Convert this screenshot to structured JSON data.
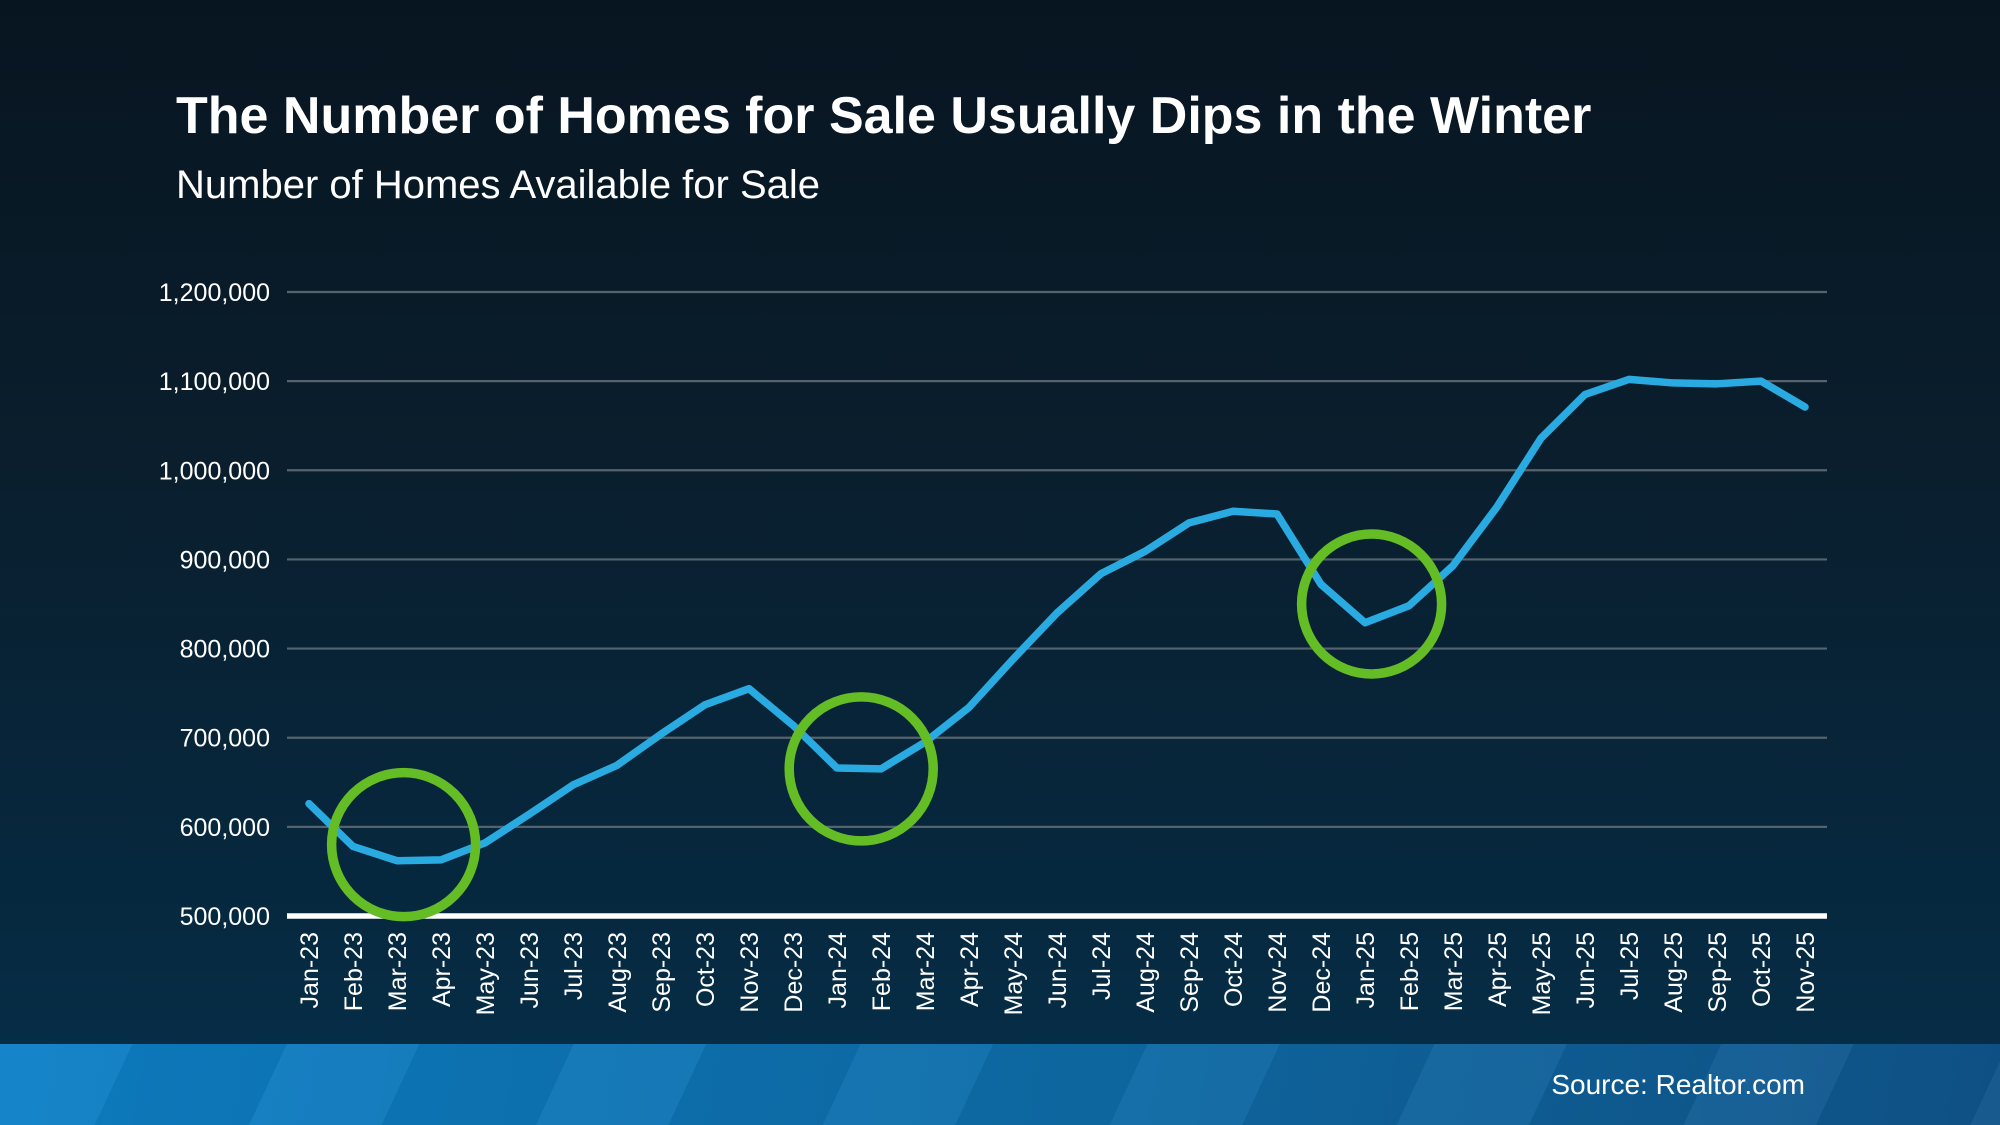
{
  "slide": {
    "title": "The Number of Homes for Sale Usually Dips in the Winter",
    "subtitle": "Number of Homes Available for Sale",
    "source": "Source: Realtor.com"
  },
  "colors": {
    "line": "#29abe2",
    "annotation_circle": "#65bd25",
    "gridline": "#55636d",
    "axis_line": "#ffffff",
    "text": "#ffffff",
    "footer_left": "#0d80c7",
    "footer_right": "#10548a"
  },
  "chart_data": {
    "type": "line",
    "title": "Number of Homes Available for Sale",
    "xlabel": "",
    "ylabel": "",
    "grid": "horizontal",
    "legend": "none",
    "ylim": [
      500000,
      1200000
    ],
    "ytick_interval": 100000,
    "ytick_labels": [
      "500,000",
      "600,000",
      "700,000",
      "800,000",
      "900,000",
      "1,000,000",
      "1,100,000",
      "1,200,000"
    ],
    "categories": [
      "Jan-23",
      "Feb-23",
      "Mar-23",
      "Apr-23",
      "May-23",
      "Jun-23",
      "Jul-23",
      "Aug-23",
      "Sep-23",
      "Oct-23",
      "Nov-23",
      "Dec-23",
      "Jan-24",
      "Feb-24",
      "Mar-24",
      "Apr-24",
      "May-24",
      "Jun-24",
      "Jul-24",
      "Aug-24",
      "Sep-24",
      "Oct-24",
      "Nov-24",
      "Dec-24",
      "Jan-25",
      "Feb-25",
      "Mar-25",
      "Apr-25",
      "May-25",
      "Jun-25",
      "Jul-25",
      "Aug-25",
      "Sep-25",
      "Oct-25",
      "Nov-25"
    ],
    "series": [
      {
        "name": "Number of Homes Available for Sale",
        "color": "#29abe2",
        "values": [
          626000,
          578000,
          562000,
          563000,
          582000,
          614000,
          647000,
          669000,
          704000,
          737000,
          755000,
          714000,
          666000,
          665000,
          695000,
          734000,
          788000,
          840000,
          884000,
          909000,
          941000,
          954000,
          951000,
          872000,
          829000,
          848000,
          893000,
          959000,
          1036000,
          1085000,
          1102000,
          1098000,
          1097000,
          1100000,
          1071000
        ]
      }
    ],
    "annotations": [
      {
        "type": "circle",
        "note": "winter-dip-2023",
        "center_category": "Mar-23",
        "offset_months": 0.15,
        "center_value": 580000,
        "radius_px": 72,
        "color": "#65bd25"
      },
      {
        "type": "circle",
        "note": "winter-dip-2024",
        "center_category": "Jan-24",
        "offset_months": 0.55,
        "center_value": 665000,
        "radius_px": 72,
        "color": "#65bd25"
      },
      {
        "type": "circle",
        "note": "winter-dip-2025",
        "center_category": "Jan-25",
        "offset_months": 0.15,
        "center_value": 850000,
        "radius_px": 70,
        "color": "#65bd25"
      }
    ]
  }
}
